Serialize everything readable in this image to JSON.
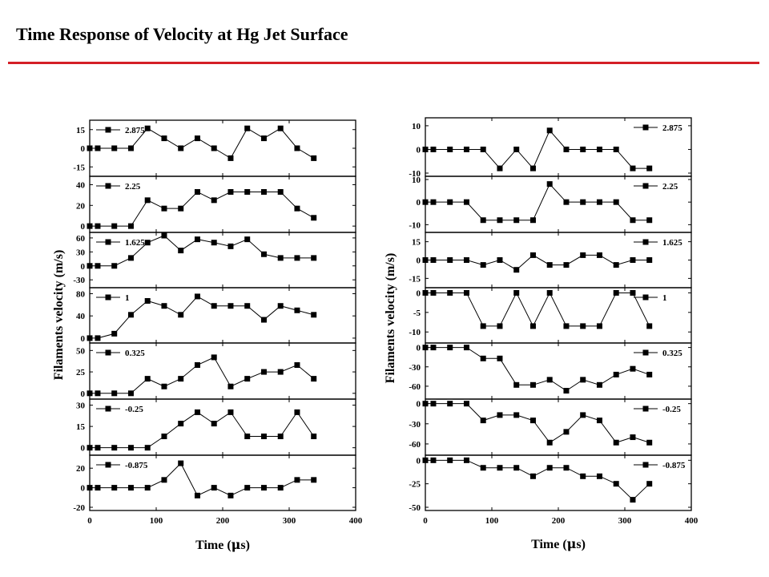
{
  "header": {
    "title": "Time Response of Velocity at Hg Jet Surface",
    "accent_color": "#d41f26"
  },
  "chart_data": [
    {
      "type": "line",
      "ylabel": "Filaments velocity (m/s)",
      "xlabel_prefix": "Time (",
      "xlabel_symbol": "μ",
      "xlabel_suffix": "s)",
      "xlim": [
        0,
        400
      ],
      "xticks": [
        "0",
        "100",
        "200",
        "300",
        "400"
      ],
      "grid": false,
      "legend_placement": "inside-top-left",
      "x": [
        0,
        12,
        37,
        62,
        87,
        112,
        137,
        162,
        187,
        212,
        237,
        262,
        287,
        312,
        337
      ],
      "panels": [
        {
          "name": "2.875",
          "ylim": [
            -20,
            20
          ],
          "yticks": [
            15,
            0,
            -15
          ],
          "values": [
            0,
            0,
            0,
            0,
            16,
            8,
            0,
            8,
            0,
            -8,
            16,
            8,
            16,
            0,
            -8
          ]
        },
        {
          "name": "2.25",
          "ylim": [
            -3,
            45
          ],
          "yticks": [
            40,
            20,
            0
          ],
          "values": [
            0,
            0,
            0,
            0,
            25,
            17,
            17,
            33,
            25,
            33,
            33,
            33,
            33,
            17,
            8
          ]
        },
        {
          "name": "1.625",
          "ylim": [
            -40,
            65
          ],
          "yticks": [
            60,
            30,
            0,
            -30
          ],
          "values": [
            0,
            0,
            0,
            17,
            50,
            65,
            33,
            57,
            50,
            42,
            57,
            25,
            17,
            17,
            17
          ]
        },
        {
          "name": "1",
          "ylim": [
            -3,
            85
          ],
          "yticks": [
            80,
            40,
            0
          ],
          "values": [
            0,
            0,
            8,
            42,
            67,
            58,
            42,
            75,
            58,
            58,
            58,
            33,
            58,
            50,
            42
          ]
        },
        {
          "name": "0.325",
          "ylim": [
            -3,
            55
          ],
          "yticks": [
            50,
            25,
            0
          ],
          "values": [
            0,
            0,
            0,
            0,
            17,
            8,
            17,
            33,
            42,
            8,
            17,
            25,
            25,
            33,
            17
          ]
        },
        {
          "name": "-0.25",
          "ylim": [
            -3,
            32
          ],
          "yticks": [
            30,
            15,
            0
          ],
          "values": [
            0,
            0,
            0,
            0,
            0,
            8,
            17,
            25,
            17,
            25,
            8,
            8,
            8,
            25,
            8
          ]
        },
        {
          "name": "-0.875",
          "ylim": [
            -20,
            30
          ],
          "yticks": [
            20,
            0,
            -20
          ],
          "values": [
            0,
            0,
            0,
            0,
            0,
            8,
            25,
            -8,
            0,
            -8,
            0,
            0,
            0,
            8,
            8
          ]
        }
      ]
    },
    {
      "type": "line",
      "ylabel": "Filaments velocity (m/s)",
      "xlabel_prefix": "Time (",
      "xlabel_symbol": "μ",
      "xlabel_suffix": "s)",
      "xlim": [
        0,
        400
      ],
      "xticks": [
        "0",
        "100",
        "200",
        "300",
        "400"
      ],
      "grid": false,
      "legend_placement": "inside-top-right",
      "x": [
        0,
        12,
        37,
        62,
        87,
        112,
        137,
        162,
        187,
        212,
        237,
        262,
        287,
        312,
        337
      ],
      "panels": [
        {
          "name": "2.875",
          "ylim": [
            -10,
            12
          ],
          "yticks": [
            10,
            0,
            -10
          ],
          "values": [
            0,
            0,
            0,
            0,
            0,
            -8,
            0,
            -8,
            8,
            0,
            0,
            0,
            0,
            -8,
            -8
          ]
        },
        {
          "name": "2.25",
          "ylim": [
            -12,
            10
          ],
          "yticks": [
            10,
            0,
            -10
          ],
          "values": [
            0,
            0,
            0,
            0,
            -8,
            -8,
            -8,
            -8,
            8,
            0,
            0,
            0,
            0,
            -8,
            -8
          ]
        },
        {
          "name": "1.625",
          "ylim": [
            -20,
            20
          ],
          "yticks": [
            15,
            0,
            -15
          ],
          "values": [
            0,
            0,
            0,
            0,
            -4,
            0,
            -8,
            4,
            -4,
            -4,
            4,
            4,
            -4,
            0,
            0
          ]
        },
        {
          "name": "1",
          "ylim": [
            -12,
            0.5
          ],
          "yticks": [
            0,
            -5,
            -10
          ],
          "values": [
            0,
            0,
            0,
            0,
            -8.5,
            -8.5,
            0,
            -8.5,
            0,
            -8.5,
            -8.5,
            -8.5,
            0,
            0,
            -8.5
          ]
        },
        {
          "name": "0.325",
          "ylim": [
            -75,
            2
          ],
          "yticks": [
            0,
            -30,
            -60
          ],
          "values": [
            0,
            0,
            0,
            0,
            -17,
            -17,
            -58,
            -58,
            -50,
            -67,
            -50,
            -58,
            -42,
            -33,
            -42
          ]
        },
        {
          "name": "-0.25",
          "ylim": [
            -72,
            2
          ],
          "yticks": [
            0,
            -30,
            -60
          ],
          "values": [
            0,
            0,
            0,
            0,
            -25,
            -17,
            -17,
            -25,
            -58,
            -42,
            -17,
            -25,
            -58,
            -50,
            -58
          ]
        },
        {
          "name": "-0.875",
          "ylim": [
            -50,
            2
          ],
          "yticks": [
            0,
            -25,
            -50
          ],
          "values": [
            0,
            0,
            0,
            0,
            -8,
            -8,
            -8,
            -17,
            -8,
            -8,
            -17,
            -17,
            -25,
            -42,
            -25
          ]
        }
      ]
    }
  ]
}
